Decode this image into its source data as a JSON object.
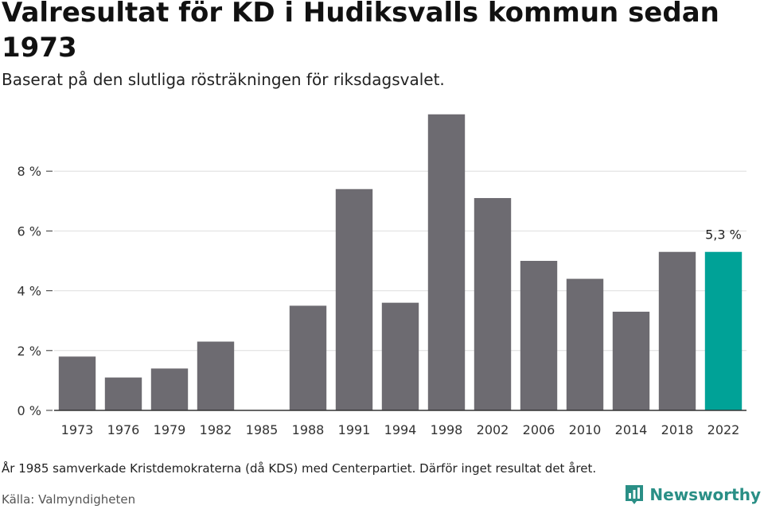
{
  "title": "Valresultat för KD i Hudiksvalls kommun sedan 1973",
  "subtitle": "Baserat på den slutliga rösträkningen för riksdagsvalet.",
  "footnote": "År 1985 samverkade Kristdemokraterna (då KDS) med Centerpartiet. Därför inget resultat det året.",
  "source": "Källa: Valmyndigheten",
  "brand": {
    "name": "Newsworthy",
    "color": "#2a8f86"
  },
  "chart_data": {
    "type": "bar",
    "categories": [
      "1973",
      "1976",
      "1979",
      "1982",
      "1985",
      "1988",
      "1991",
      "1994",
      "1998",
      "2002",
      "2006",
      "2010",
      "2014",
      "2018",
      "2022"
    ],
    "values": [
      1.8,
      1.1,
      1.4,
      2.3,
      null,
      3.5,
      7.4,
      3.6,
      9.9,
      7.1,
      5.0,
      4.4,
      3.3,
      5.3,
      5.3
    ],
    "unit": "%",
    "ylim": [
      0,
      10
    ],
    "yticks": [
      0,
      2,
      4,
      6,
      8
    ],
    "ytick_labels": [
      "0 %",
      "2 %",
      "4 %",
      "6 %",
      "8 %"
    ],
    "grid": true,
    "colors": {
      "default": "#6d6b71",
      "highlight": "#00a297"
    },
    "highlight_index": 14,
    "annotation": {
      "index": 14,
      "label": "5,3 %"
    }
  }
}
